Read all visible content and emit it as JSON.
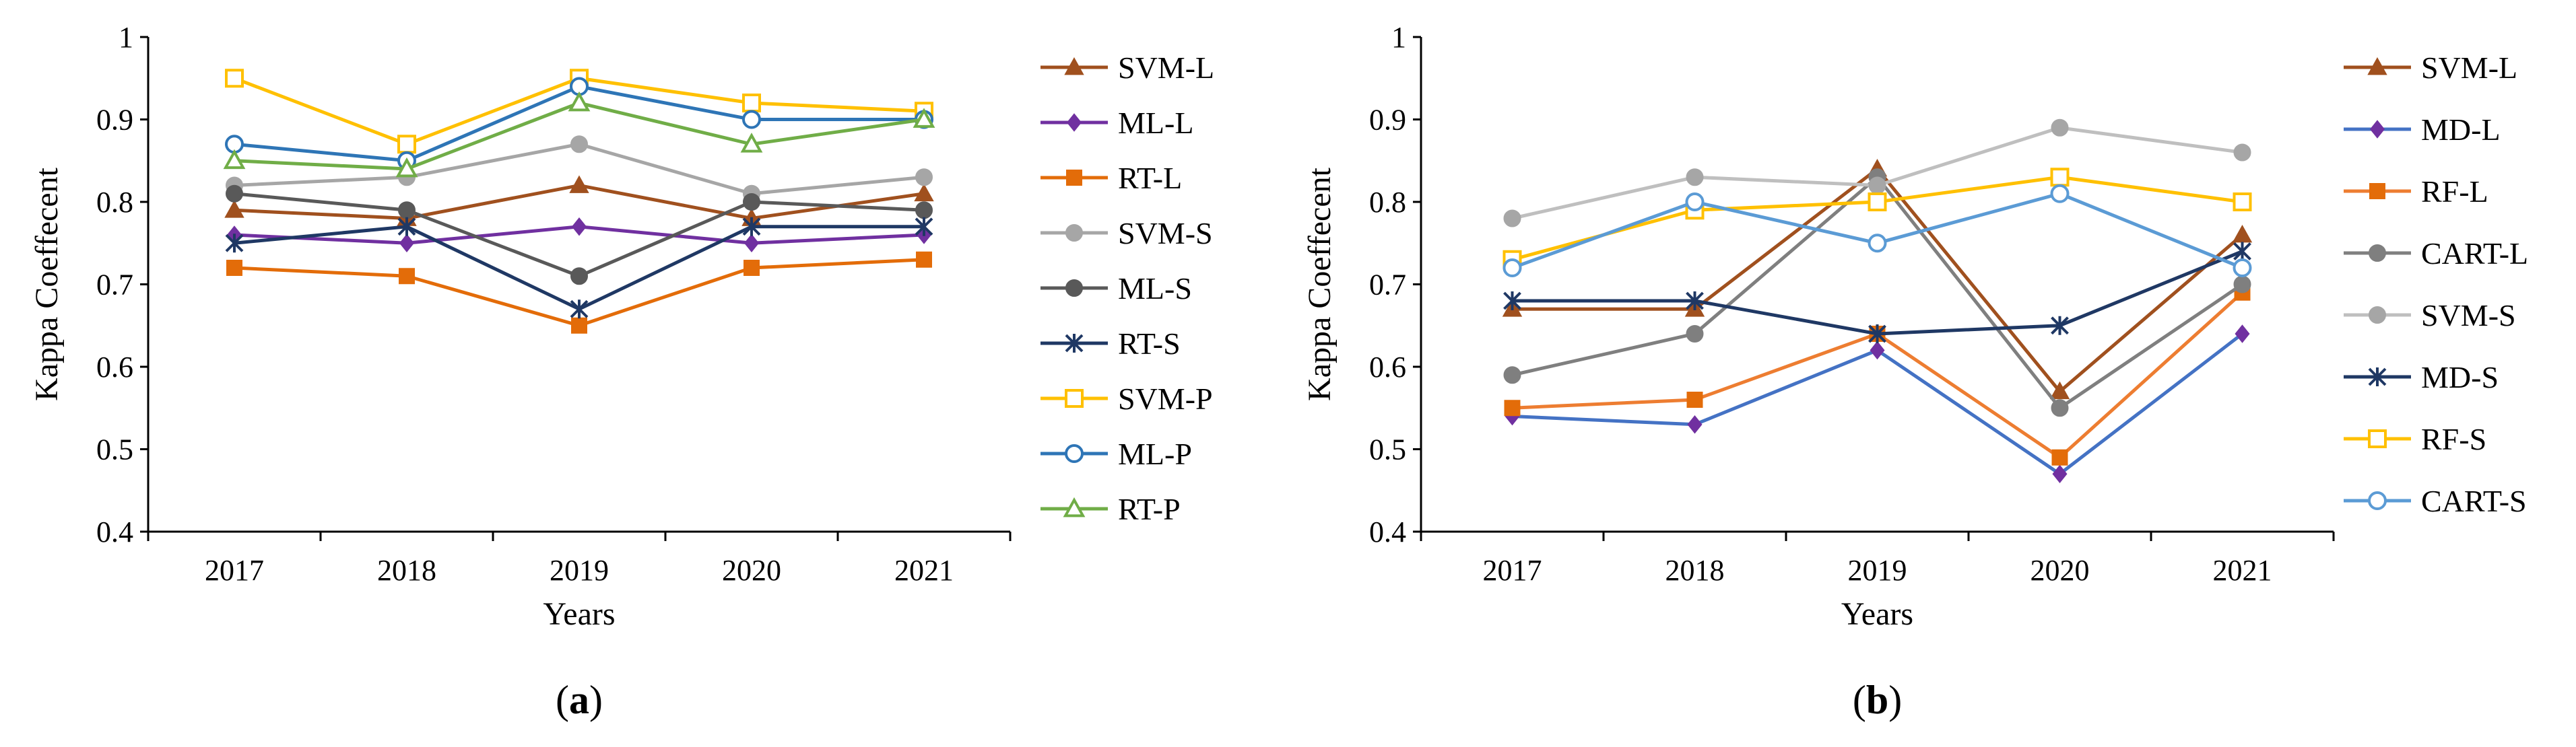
{
  "chart_data": [
    {
      "type": "line",
      "panel_label": "(a)",
      "panel_letter": "a",
      "xlabel": "Years",
      "ylabel": "Kappa Coeffecent",
      "ylim": [
        0.4,
        1.0
      ],
      "yticks": [
        "0.4",
        "0.5",
        "0.6",
        "0.7",
        "0.8",
        "0.9",
        "1"
      ],
      "categories": [
        "2017",
        "2018",
        "2019",
        "2020",
        "2021"
      ],
      "legend_position": "right",
      "grid": false,
      "series": [
        {
          "name": "SVM-L",
          "values": [
            0.79,
            0.78,
            0.82,
            0.78,
            0.81
          ],
          "color": "#A0501E",
          "marker": "triangle-filled"
        },
        {
          "name": "ML-L",
          "values": [
            0.76,
            0.75,
            0.77,
            0.75,
            0.76
          ],
          "color": "#7030A0",
          "marker": "diamond-filled"
        },
        {
          "name": "RT-L",
          "values": [
            0.72,
            0.71,
            0.65,
            0.72,
            0.73
          ],
          "color": "#E36C09",
          "marker": "square-filled"
        },
        {
          "name": "SVM-S",
          "values": [
            0.82,
            0.83,
            0.87,
            0.81,
            0.83
          ],
          "color": "#A6A6A6",
          "marker": "circle-filled"
        },
        {
          "name": "ML-S",
          "values": [
            0.81,
            0.79,
            0.71,
            0.8,
            0.79
          ],
          "color": "#595959",
          "marker": "circle-filled"
        },
        {
          "name": "RT-S",
          "values": [
            0.75,
            0.77,
            0.67,
            0.77,
            0.77
          ],
          "color": "#1F3864",
          "marker": "star"
        },
        {
          "name": "SVM-P",
          "values": [
            0.95,
            0.87,
            0.95,
            0.92,
            0.91
          ],
          "color": "#FFC000",
          "marker": "square-open"
        },
        {
          "name": "ML-P",
          "values": [
            0.87,
            0.85,
            0.94,
            0.9,
            0.9
          ],
          "color": "#2E75B6",
          "marker": "circle-open"
        },
        {
          "name": "RT-P",
          "values": [
            0.85,
            0.84,
            0.92,
            0.87,
            0.9
          ],
          "color": "#70AD47",
          "marker": "triangle-open"
        }
      ]
    },
    {
      "type": "line",
      "panel_label": "(b)",
      "panel_letter": "b",
      "xlabel": "Years",
      "ylabel": "Kappa Coeffecent",
      "ylim": [
        0.4,
        1.0
      ],
      "yticks": [
        "0.4",
        "0.5",
        "0.6",
        "0.7",
        "0.8",
        "0.9",
        "1"
      ],
      "categories": [
        "2017",
        "2018",
        "2019",
        "2020",
        "2021"
      ],
      "legend_position": "right",
      "grid": false,
      "series": [
        {
          "name": "SVM-L",
          "values": [
            0.67,
            0.67,
            0.84,
            0.57,
            0.76
          ],
          "color": "#A0501E",
          "marker": "triangle-filled"
        },
        {
          "name": "MD-L",
          "values": [
            0.54,
            0.53,
            0.62,
            0.47,
            0.64
          ],
          "color": "#4472C4",
          "marker": "diamond-filled",
          "markerColor": "#7030A0"
        },
        {
          "name": "RF-L",
          "values": [
            0.55,
            0.56,
            0.64,
            0.49,
            0.69
          ],
          "color": "#ED7D31",
          "marker": "square-filled",
          "markerColor": "#E36C09"
        },
        {
          "name": "CART-L",
          "values": [
            0.59,
            0.64,
            0.83,
            0.55,
            0.7
          ],
          "color": "#7F7F7F",
          "marker": "circle-filled"
        },
        {
          "name": "SVM-S",
          "values": [
            0.78,
            0.83,
            0.82,
            0.89,
            0.86
          ],
          "color": "#BFBFBF",
          "marker": "circle-filled",
          "markerColor": "#A6A6A6"
        },
        {
          "name": "MD-S",
          "values": [
            0.68,
            0.68,
            0.64,
            0.65,
            0.74
          ],
          "color": "#1F3864",
          "marker": "star"
        },
        {
          "name": "RF-S",
          "values": [
            0.73,
            0.79,
            0.8,
            0.83,
            0.8
          ],
          "color": "#FFC000",
          "marker": "square-open"
        },
        {
          "name": "CART-S",
          "values": [
            0.72,
            0.8,
            0.75,
            0.81,
            0.72
          ],
          "color": "#5B9BD5",
          "marker": "circle-open"
        }
      ]
    }
  ]
}
